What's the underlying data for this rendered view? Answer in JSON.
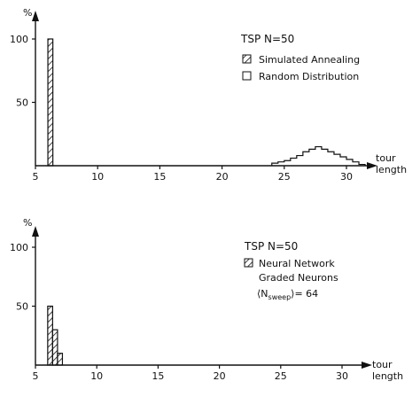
{
  "chart_data": [
    {
      "type": "bar",
      "title": "TSP  N=50",
      "ylabel": "%",
      "xlabel": "tour length",
      "xlim": [
        5,
        32
      ],
      "ylim": [
        0,
        115
      ],
      "xticks": [
        5,
        10,
        15,
        20,
        25,
        30
      ],
      "yticks": [
        50,
        100
      ],
      "legend": [
        {
          "label": "Simulated Annealing",
          "style": "hatched"
        },
        {
          "label": "Random Distribution",
          "style": "open"
        }
      ],
      "series": [
        {
          "name": "Simulated Annealing",
          "style": "hatched",
          "bars": [
            {
              "x0": 6.0,
              "x1": 6.4,
              "y": 100
            }
          ]
        },
        {
          "name": "Random Distribution",
          "style": "open",
          "steps": [
            {
              "x0": 24.0,
              "x1": 24.5,
              "y": 2
            },
            {
              "x0": 24.5,
              "x1": 25.0,
              "y": 3
            },
            {
              "x0": 25.0,
              "x1": 25.5,
              "y": 4
            },
            {
              "x0": 25.5,
              "x1": 26.0,
              "y": 6
            },
            {
              "x0": 26.0,
              "x1": 26.5,
              "y": 8
            },
            {
              "x0": 26.5,
              "x1": 27.0,
              "y": 11
            },
            {
              "x0": 27.0,
              "x1": 27.5,
              "y": 13
            },
            {
              "x0": 27.5,
              "x1": 28.0,
              "y": 15
            },
            {
              "x0": 28.0,
              "x1": 28.5,
              "y": 13
            },
            {
              "x0": 28.5,
              "x1": 29.0,
              "y": 11
            },
            {
              "x0": 29.0,
              "x1": 29.5,
              "y": 9
            },
            {
              "x0": 29.5,
              "x1": 30.0,
              "y": 7
            },
            {
              "x0": 30.0,
              "x1": 30.5,
              "y": 5
            },
            {
              "x0": 30.5,
              "x1": 31.0,
              "y": 3
            },
            {
              "x0": 31.0,
              "x1": 31.5,
              "y": 1
            }
          ]
        }
      ]
    },
    {
      "type": "bar",
      "title": "TSP  N=50",
      "ylabel": "%",
      "xlabel": "tour length",
      "xlim": [
        5,
        32
      ],
      "ylim": [
        0,
        115
      ],
      "xticks": [
        5,
        10,
        15,
        20,
        25,
        30
      ],
      "yticks": [
        50,
        100
      ],
      "legend": [
        {
          "label": "Neural Network",
          "style": "hatched"
        }
      ],
      "legend_lines": [
        "Graded Neurons"
      ],
      "annotation": {
        "open": "⟨N",
        "sub": "sweep",
        "close": "⟩= 64"
      },
      "series": [
        {
          "name": "Neural Network",
          "style": "hatched",
          "bars": [
            {
              "x0": 6.0,
              "x1": 6.4,
              "y": 50
            },
            {
              "x0": 6.4,
              "x1": 6.8,
              "y": 30
            },
            {
              "x0": 6.8,
              "x1": 7.2,
              "y": 10
            }
          ]
        }
      ]
    }
  ]
}
